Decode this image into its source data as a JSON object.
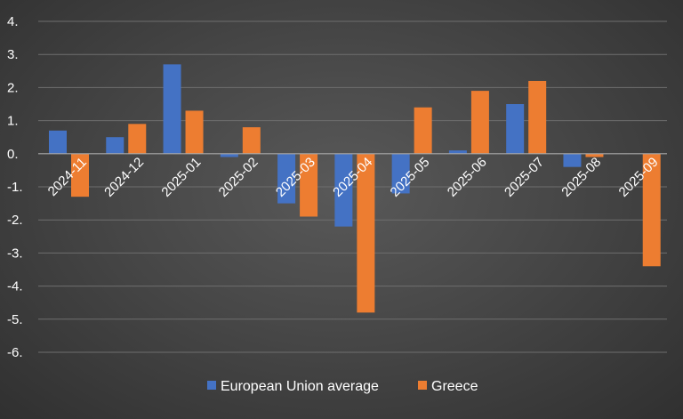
{
  "chart_data": {
    "type": "bar",
    "title": "",
    "xlabel": "",
    "ylabel": "",
    "categories": [
      "2024-11",
      "2024-12",
      "2025-01",
      "2025-02",
      "2025-03",
      "2025-04",
      "2025-05",
      "2025-06",
      "2025-07",
      "2025-08",
      "2025-09"
    ],
    "series": [
      {
        "name": "European Union average",
        "color": "#4472C4",
        "values": [
          0.7,
          0.5,
          2.7,
          -0.1,
          -1.5,
          -2.2,
          -1.2,
          0.1,
          1.5,
          -0.4,
          null
        ]
      },
      {
        "name": "Greece",
        "color": "#ED7D31",
        "values": [
          -1.3,
          0.9,
          1.3,
          0.8,
          -1.9,
          -4.8,
          1.4,
          1.9,
          2.2,
          -0.1,
          -3.4
        ]
      }
    ],
    "ylim": [
      -6,
      4
    ],
    "yticks": [
      4,
      3,
      2,
      1,
      0,
      -1,
      -2,
      -3,
      -4,
      -5,
      -6
    ],
    "ytick_labels": [
      "4.",
      "3.",
      "2.",
      "1.",
      "0.",
      "-1.",
      "-2.",
      "-3.",
      "-4.",
      "-5.",
      "-6."
    ],
    "grid": true,
    "legend_position": "bottom"
  }
}
